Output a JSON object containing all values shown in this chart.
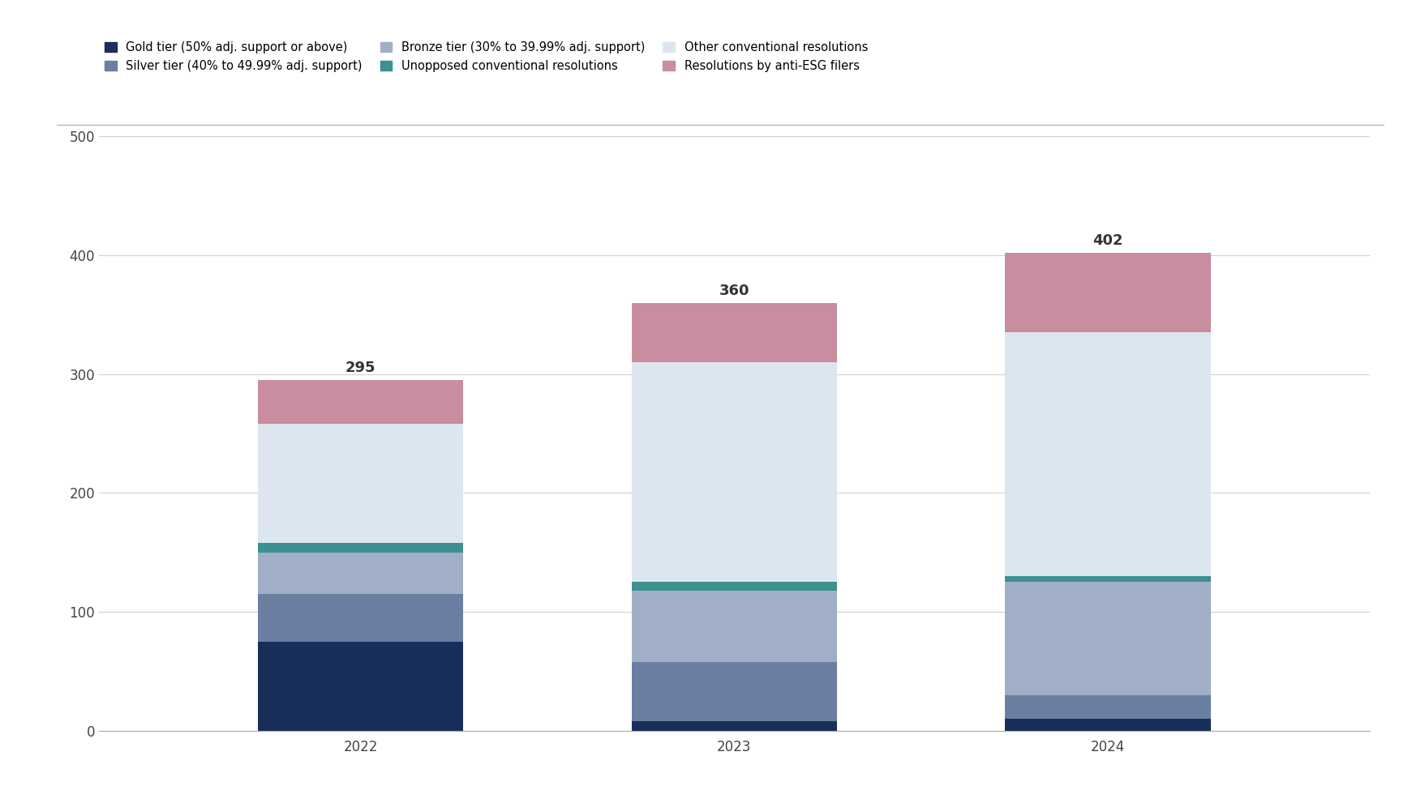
{
  "years": [
    "2022",
    "2023",
    "2024"
  ],
  "totals": [
    295,
    360,
    402
  ],
  "segments": {
    "Gold tier (50% adj. support or above)": {
      "values": [
        75,
        8,
        10
      ],
      "color": "#1a2e5a"
    },
    "Silver tier (40% to 49.99% adj. support)": {
      "values": [
        40,
        50,
        20
      ],
      "color": "#6b7fa3"
    },
    "Bronze tier (30% to 39.99% adj. support)": {
      "values": [
        35,
        60,
        95
      ],
      "color": "#a0afc5"
    },
    "Unopposed conventional resolutions": {
      "values": [
        8,
        7,
        5
      ],
      "color": "#3d9090"
    },
    "Other conventional resolutions": {
      "values": [
        100,
        185,
        205
      ],
      "color": "#dce6f0"
    },
    "Resolutions by anti-ESG filers": {
      "values": [
        37,
        50,
        67
      ],
      "color": "#c98da0"
    }
  },
  "ylim": [
    0,
    500
  ],
  "yticks": [
    0,
    100,
    200,
    300,
    400,
    500
  ],
  "bar_width": 0.55,
  "background_color": "#ffffff",
  "figure_background": "#ffffff",
  "tick_fontsize": 12,
  "legend_fontsize": 10.5,
  "total_label_fontsize": 13
}
